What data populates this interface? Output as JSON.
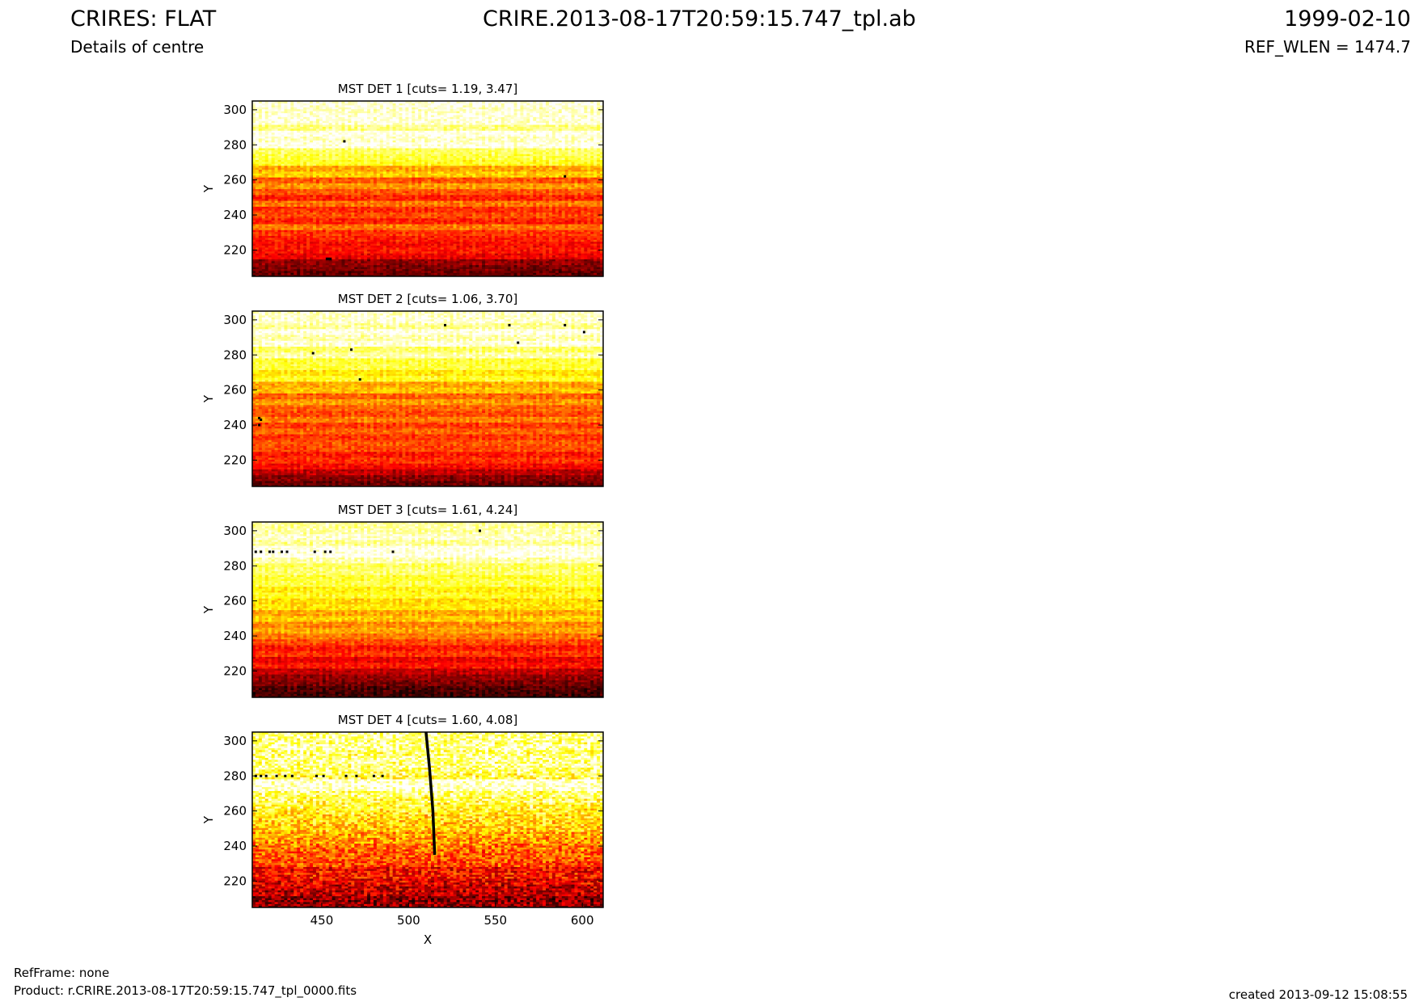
{
  "header": {
    "title_left": "CRIRES: FLAT",
    "title_center": "CRIRE.2013-08-17T20:59:15.747_tpl.ab",
    "title_right": "1999-02-10",
    "subtitle_left": "Details of centre",
    "subtitle_right": "REF_WLEN = 1474.7"
  },
  "footer": {
    "refframe": "RefFrame: none",
    "product": "Product: r.CRIRE.2013-08-17T20:59:15.747_tpl_0000.fits",
    "created": "created 2013-09-12 15:08:55"
  },
  "colormap": {
    "name": "hot",
    "low": "#000000",
    "mid": "#ff2000",
    "high": "#ffff40",
    "top": "#ffffff"
  },
  "chart_data": [
    {
      "type": "heatmap",
      "title": "MST DET 1 [cuts= 1.19, 3.47]",
      "xlabel": "",
      "ylabel": "Y",
      "xlim": [
        410,
        612
      ],
      "ylim": [
        205,
        305
      ],
      "yticks": [
        "220",
        "240",
        "260",
        "280",
        "300"
      ],
      "xticks": [],
      "profile": [
        0.15,
        0.18,
        0.22,
        0.35,
        0.4,
        0.38,
        0.42,
        0.45,
        0.55,
        0.42,
        0.48,
        0.44,
        0.55,
        0.42,
        0.5,
        0.6,
        0.5,
        0.68,
        0.62,
        0.78,
        0.82,
        0.85,
        0.98,
        0.95,
        0.99,
        0.88,
        0.96,
        0.97,
        0.95,
        0.97
      ],
      "bad_pixels": [
        [
          453,
          215
        ],
        [
          454,
          215
        ],
        [
          455,
          215
        ],
        [
          463,
          282
        ],
        [
          590,
          262
        ]
      ]
    },
    {
      "type": "heatmap",
      "title": "MST DET 2 [cuts= 1.06, 3.70]",
      "xlabel": "",
      "ylabel": "Y",
      "xlim": [
        410,
        612
      ],
      "ylim": [
        205,
        305
      ],
      "yticks": [
        "220",
        "240",
        "260",
        "280",
        "300"
      ],
      "xticks": [],
      "profile": [
        0.15,
        0.2,
        0.28,
        0.38,
        0.45,
        0.4,
        0.48,
        0.5,
        0.45,
        0.52,
        0.46,
        0.56,
        0.48,
        0.52,
        0.6,
        0.52,
        0.66,
        0.62,
        0.78,
        0.72,
        0.82,
        0.8,
        0.92,
        0.85,
        0.97,
        0.92,
        0.98,
        0.9,
        0.96,
        0.95
      ],
      "bad_pixels": [
        [
          414,
          240
        ],
        [
          415,
          243
        ],
        [
          414,
          244
        ],
        [
          445,
          281
        ],
        [
          467,
          283
        ],
        [
          521,
          297
        ],
        [
          558,
          297
        ],
        [
          590,
          297
        ],
        [
          601,
          293
        ],
        [
          472,
          266
        ],
        [
          563,
          287
        ]
      ]
    },
    {
      "type": "heatmap",
      "title": "MST DET 3 [cuts= 1.61, 4.24]",
      "xlabel": "",
      "ylabel": "Y",
      "xlim": [
        410,
        612
      ],
      "ylim": [
        205,
        305
      ],
      "yticks": [
        "220",
        "240",
        "260",
        "280",
        "300"
      ],
      "xticks": [],
      "profile": [
        0.1,
        0.12,
        0.18,
        0.22,
        0.28,
        0.4,
        0.35,
        0.45,
        0.4,
        0.48,
        0.55,
        0.62,
        0.58,
        0.68,
        0.62,
        0.72,
        0.7,
        0.78,
        0.74,
        0.82,
        0.8,
        0.86,
        0.84,
        0.92,
        0.99,
        0.99,
        0.9,
        0.95,
        0.92,
        0.9
      ],
      "bad_pixels": [
        [
          412,
          288
        ],
        [
          415,
          288
        ],
        [
          420,
          288
        ],
        [
          422,
          288
        ],
        [
          427,
          288
        ],
        [
          430,
          288
        ],
        [
          446,
          288
        ],
        [
          452,
          288
        ],
        [
          455,
          288
        ],
        [
          491,
          288
        ],
        [
          541,
          300
        ]
      ]
    },
    {
      "type": "heatmap",
      "title": "MST DET 4 [cuts= 1.60, 4.08]",
      "xlabel": "X",
      "ylabel": "Y",
      "xlim": [
        410,
        612
      ],
      "ylim": [
        205,
        305
      ],
      "yticks": [
        "220",
        "240",
        "260",
        "280",
        "300"
      ],
      "xticks": [
        "450",
        "500",
        "550",
        "600"
      ],
      "profile": [
        0.22,
        0.2,
        0.28,
        0.3,
        0.35,
        0.4,
        0.38,
        0.48,
        0.5,
        0.52,
        0.55,
        0.6,
        0.62,
        0.68,
        0.7,
        0.72,
        0.76,
        0.8,
        0.82,
        0.86,
        0.99,
        0.99,
        0.82,
        0.85,
        0.88,
        0.9,
        0.86,
        0.92,
        0.88,
        0.9
      ],
      "bad_pixels": [
        [
          412,
          280
        ],
        [
          415,
          280
        ],
        [
          418,
          280
        ],
        [
          424,
          280
        ],
        [
          429,
          280
        ],
        [
          433,
          280
        ],
        [
          447,
          280
        ],
        [
          451,
          280
        ],
        [
          464,
          280
        ],
        [
          470,
          280
        ],
        [
          480,
          280
        ],
        [
          485,
          280
        ]
      ],
      "streak": [
        [
          510,
          305
        ],
        [
          512,
          285
        ],
        [
          514,
          260
        ],
        [
          515,
          235
        ]
      ]
    }
  ]
}
